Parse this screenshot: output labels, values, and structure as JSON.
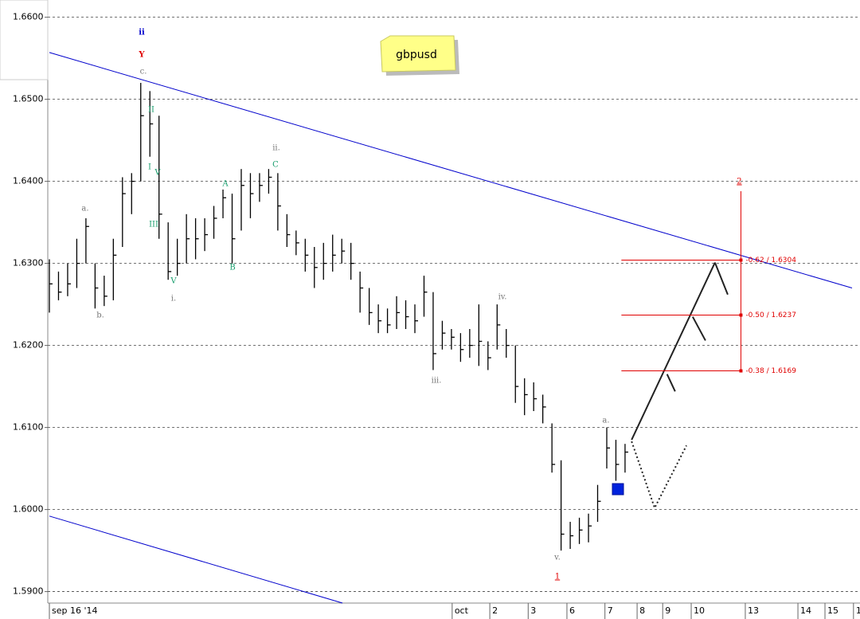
{
  "chart_data": {
    "type": "ohlc",
    "title": "gbpusd",
    "ylim": [
      1.5886,
      1.6621
    ],
    "yticks": [
      {
        "value": 1.66,
        "label": "1.6600"
      },
      {
        "value": 1.65,
        "label": "1.6500"
      },
      {
        "value": 1.64,
        "label": "1.6400"
      },
      {
        "value": 1.63,
        "label": "1.6300"
      },
      {
        "value": 1.62,
        "label": "1.6200"
      },
      {
        "value": 1.61,
        "label": "1.6100"
      },
      {
        "value": 1.6,
        "label": "1.6000"
      },
      {
        "value": 1.59,
        "label": "1.5900"
      }
    ],
    "xlim": [
      0,
      22.2
    ],
    "xticks": [
      {
        "value": 0,
        "label": "sep 16 '14"
      },
      {
        "value": 11.02,
        "label": "oct"
      },
      {
        "value": 12.05,
        "label": "2"
      },
      {
        "value": 13.1,
        "label": "3"
      },
      {
        "value": 14.16,
        "label": "6"
      },
      {
        "value": 15.2,
        "label": "7"
      },
      {
        "value": 16.08,
        "label": "8"
      },
      {
        "value": 16.78,
        "label": "9"
      },
      {
        "value": 17.56,
        "label": "10"
      },
      {
        "value": 19.04,
        "label": "13"
      },
      {
        "value": 20.48,
        "label": "14"
      },
      {
        "value": 21.22,
        "label": "15"
      },
      {
        "value": 22.0,
        "label": "16"
      }
    ],
    "grid": true,
    "color": "#000000",
    "x": [
      0,
      0.25,
      0.5,
      0.75,
      1,
      1.25,
      1.5,
      1.75,
      2,
      2.25,
      2.5,
      2.75,
      3,
      3.25,
      3.5,
      3.75,
      4,
      4.25,
      4.5,
      4.75,
      5,
      5.25,
      5.5,
      5.75,
      6,
      6.25,
      6.5,
      6.75,
      7,
      7.25,
      7.5,
      7.75,
      8,
      8.25,
      8.5,
      8.75,
      9,
      9.25,
      9.5,
      9.75,
      10,
      10.25,
      10.5,
      10.75,
      11,
      11.25,
      11.5,
      11.75,
      12,
      12.25,
      12.5,
      12.75,
      13,
      13.25,
      13.5,
      13.75,
      14,
      14.25,
      14.5,
      14.75,
      15,
      15.25,
      15.5,
      15.75
    ],
    "high": [
      1.6305,
      1.629,
      1.63,
      1.633,
      1.6355,
      1.63,
      1.6285,
      1.633,
      1.6405,
      1.641,
      1.652,
      1.651,
      1.648,
      1.635,
      1.633,
      1.636,
      1.6355,
      1.6355,
      1.637,
      1.639,
      1.6385,
      1.6415,
      1.641,
      1.641,
      1.6415,
      1.641,
      1.636,
      1.634,
      1.633,
      1.632,
      1.6325,
      1.6335,
      1.633,
      1.6325,
      1.629,
      1.627,
      1.625,
      1.6245,
      1.626,
      1.6255,
      1.625,
      1.6285,
      1.6265,
      1.623,
      1.622,
      1.6215,
      1.622,
      1.625,
      1.6205,
      1.625,
      1.622,
      1.62,
      1.616,
      1.6155,
      1.614,
      1.6105,
      1.606,
      1.5985,
      1.599,
      1.5995,
      1.603,
      1.61,
      1.6085,
      1.608
    ],
    "low": [
      1.624,
      1.6255,
      1.626,
      1.627,
      1.63,
      1.6245,
      1.6248,
      1.6255,
      1.632,
      1.636,
      1.64,
      1.643,
      1.633,
      1.628,
      1.6285,
      1.63,
      1.6305,
      1.6315,
      1.633,
      1.6355,
      1.63,
      1.634,
      1.6355,
      1.6375,
      1.6385,
      1.634,
      1.632,
      1.631,
      1.629,
      1.627,
      1.628,
      1.629,
      1.63,
      1.628,
      1.624,
      1.6225,
      1.6215,
      1.6215,
      1.622,
      1.622,
      1.6215,
      1.6235,
      1.617,
      1.6195,
      1.6195,
      1.618,
      1.6185,
      1.6175,
      1.617,
      1.6195,
      1.6185,
      1.613,
      1.6115,
      1.612,
      1.6105,
      1.6045,
      1.595,
      1.5952,
      1.5958,
      1.596,
      1.5985,
      1.605,
      1.6035,
      1.6045
    ],
    "close": [
      1.6275,
      1.6265,
      1.6275,
      1.63,
      1.6345,
      1.627,
      1.626,
      1.631,
      1.6385,
      1.64,
      1.648,
      1.647,
      1.636,
      1.629,
      1.63,
      1.633,
      1.633,
      1.6335,
      1.6355,
      1.638,
      1.633,
      1.6395,
      1.6385,
      1.6395,
      1.6405,
      1.637,
      1.6335,
      1.6325,
      1.631,
      1.6295,
      1.63,
      1.631,
      1.6315,
      1.63,
      1.627,
      1.624,
      1.623,
      1.6225,
      1.624,
      1.6235,
      1.623,
      1.6265,
      1.619,
      1.6215,
      1.621,
      1.6195,
      1.62,
      1.6205,
      1.6185,
      1.6225,
      1.62,
      1.615,
      1.614,
      1.6135,
      1.6125,
      1.6055,
      1.597,
      1.5968,
      1.5975,
      1.598,
      1.601,
      1.6075,
      1.6055,
      1.607
    ],
    "lines": [
      {
        "color": "#0000cc",
        "style": "solid",
        "x": [
          0,
          21.96
        ],
        "y": [
          1.6557,
          1.627
        ]
      },
      {
        "color": "#0000cc",
        "style": "solid",
        "x": [
          0,
          8.02
        ],
        "y": [
          1.5992,
          1.5886
        ]
      },
      {
        "color": "#222222",
        "style": "solid",
        "x": [
          15.93,
          18.21
        ],
        "y": [
          1.6085,
          1.6301
        ]
      },
      {
        "color": "#222222",
        "style": "solid",
        "x": [
          18.21,
          18.56
        ],
        "y": [
          1.6301,
          1.6262
        ]
      },
      {
        "color": "#222222",
        "style": "solid",
        "x": [
          17.6,
          17.95
        ],
        "y": [
          1.6235,
          1.6206
        ]
      },
      {
        "color": "#222222",
        "style": "solid",
        "x": [
          16.9,
          17.12
        ],
        "y": [
          1.6165,
          1.6144
        ]
      },
      {
        "color": "#222222",
        "style": "dotted",
        "x": [
          15.93,
          16.56,
          17.43
        ],
        "y": [
          1.6083,
          1.6002,
          1.6078
        ]
      }
    ],
    "fib": {
      "color": "#e00000",
      "x": [
        15.65,
        18.92
      ],
      "top": 1.6388,
      "label": "2",
      "levels": [
        {
          "value": 1.6304,
          "label": "-0.62 / 1.6304"
        },
        {
          "value": 1.6237,
          "label": "-0.50 / 1.6237"
        },
        {
          "value": 1.6169,
          "label": "-0.38 / 1.6169"
        }
      ]
    },
    "annotations": [
      {
        "text": "ii",
        "color": "#0000cc"
      },
      {
        "text": "Y",
        "color": "#e00000"
      },
      {
        "text": "c.",
        "color": "#777777"
      },
      {
        "text": "II",
        "color": "#1a9e6e"
      },
      {
        "text": "I",
        "color": "#1a9e6e"
      },
      {
        "text": "V",
        "color": "#1a9e6e"
      },
      {
        "text": "III",
        "color": "#1a9e6e"
      },
      {
        "text": "V",
        "color": "#1a9e6e"
      },
      {
        "text": "i.",
        "color": "#777777"
      },
      {
        "text": "a.",
        "color": "#777777"
      },
      {
        "text": "b.",
        "color": "#777777"
      },
      {
        "text": "A",
        "color": "#1a9e6e"
      },
      {
        "text": "B",
        "color": "#1a9e6e"
      },
      {
        "text": "ii.",
        "color": "#777777"
      },
      {
        "text": "C",
        "color": "#1a9e6e"
      },
      {
        "text": "iii.",
        "color": "#777777"
      },
      {
        "text": "iv.",
        "color": "#777777"
      },
      {
        "text": "v.",
        "color": "#777777"
      },
      {
        "text": "1",
        "color": "#e00000"
      },
      {
        "text": "a.",
        "color": "#777777"
      }
    ]
  }
}
